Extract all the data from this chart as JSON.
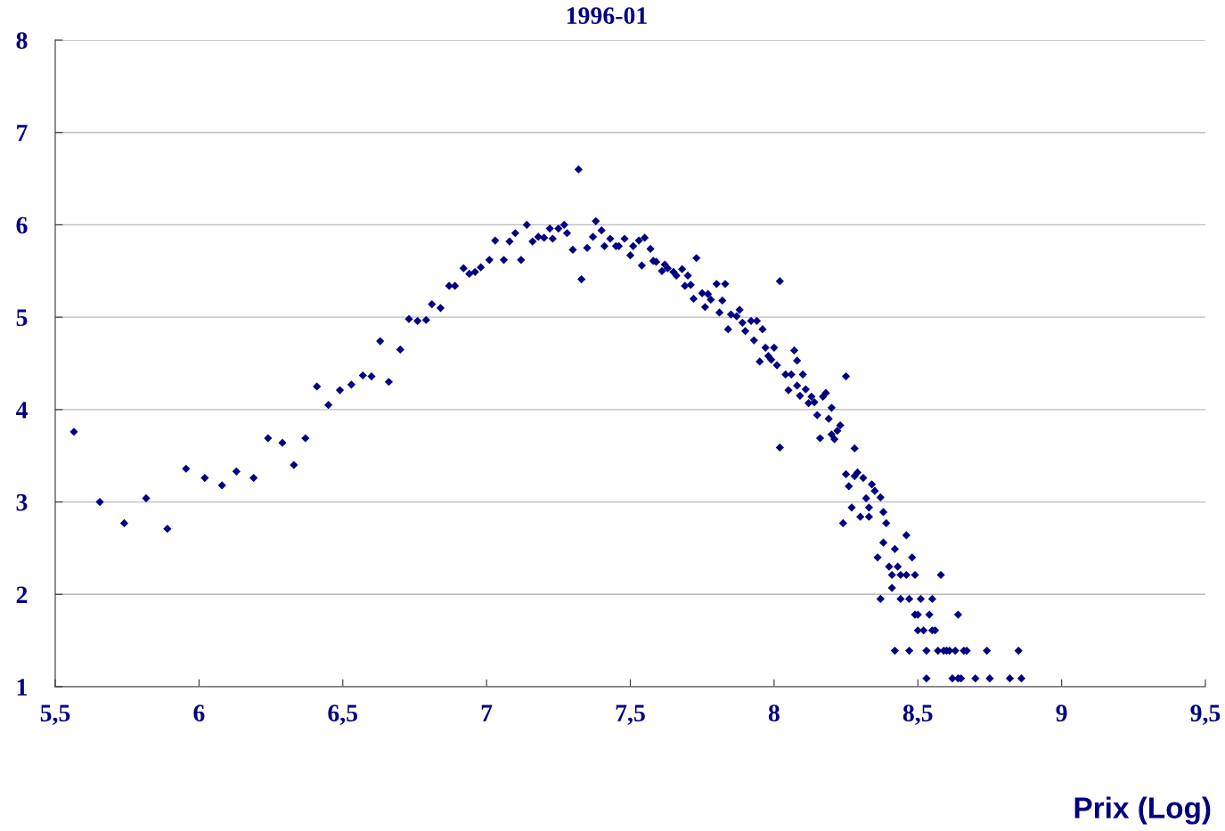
{
  "chart_data": {
    "type": "scatter",
    "title": "1996-01",
    "xlabel": "Prix (Log)",
    "xlim": [
      5.5,
      9.5
    ],
    "xticks": [
      {
        "value": 5.5,
        "label": "5,5"
      },
      6,
      {
        "value": 6.5,
        "label": "6,5"
      },
      7,
      {
        "value": 7.5,
        "label": "7,5"
      },
      8,
      {
        "value": 8.5,
        "label": "8,5"
      },
      9,
      {
        "value": 9.5,
        "label": "9,5"
      }
    ],
    "ylim": [
      1,
      8
    ],
    "yticks": [
      1,
      2,
      3,
      4,
      5,
      6,
      7,
      8
    ],
    "grid": "y",
    "marker": "diamond",
    "series": [
      {
        "color": "#000080",
        "x": [
          5.565,
          5.655,
          5.74,
          5.816,
          5.89,
          5.955,
          6.02,
          6.08,
          6.13,
          6.19,
          6.24,
          6.29,
          6.33,
          6.37,
          6.41,
          6.45,
          6.49,
          6.53,
          6.57,
          6.6,
          6.63,
          6.66,
          6.7,
          6.73,
          6.76,
          6.79,
          6.81,
          6.84,
          6.87,
          6.89,
          6.92,
          6.94,
          6.96,
          6.98,
          7.01,
          7.03,
          7.06,
          7.08,
          7.1,
          7.12,
          7.14,
          7.16,
          7.18,
          7.2,
          7.22,
          7.23,
          7.25,
          7.27,
          7.28,
          7.3,
          7.32,
          7.33,
          7.35,
          7.37,
          7.38,
          7.4,
          7.41,
          7.43,
          7.45,
          7.46,
          7.48,
          7.5,
          7.51,
          7.53,
          7.54,
          7.55,
          7.57,
          7.58,
          7.59,
          7.61,
          7.62,
          7.63,
          7.65,
          7.66,
          7.68,
          7.69,
          7.7,
          7.71,
          7.72,
          7.73,
          7.75,
          7.76,
          7.77,
          7.78,
          7.8,
          7.81,
          7.82,
          7.83,
          7.84,
          7.85,
          7.87,
          7.88,
          7.89,
          7.9,
          7.92,
          7.93,
          7.94,
          7.95,
          7.96,
          7.97,
          7.98,
          7.99,
          8.0,
          8.01,
          8.02,
          8.02,
          8.04,
          8.05,
          8.06,
          8.07,
          8.08,
          8.08,
          8.09,
          8.1,
          8.11,
          8.12,
          8.13,
          8.14,
          8.15,
          8.16,
          8.17,
          8.18,
          8.19,
          8.2,
          8.2,
          8.21,
          8.22,
          8.23,
          8.24,
          8.25,
          8.25,
          8.26,
          8.27,
          8.28,
          8.28,
          8.29,
          8.3,
          8.31,
          8.32,
          8.33,
          8.33,
          8.34,
          8.35,
          8.36,
          8.37,
          8.37,
          8.38,
          8.38,
          8.39,
          8.4,
          8.41,
          8.41,
          8.42,
          8.42,
          8.43,
          8.44,
          8.44,
          8.46,
          8.46,
          8.47,
          8.47,
          8.48,
          8.49,
          8.49,
          8.5,
          8.5,
          8.51,
          8.52,
          8.53,
          8.53,
          8.54,
          8.55,
          8.55,
          8.56,
          8.57,
          8.58,
          8.59,
          8.6,
          8.61,
          8.62,
          8.63,
          8.64,
          8.64,
          8.65,
          8.66,
          8.67,
          8.7,
          8.74,
          8.75,
          8.82,
          8.85,
          8.86
        ],
        "values": [
          3.76,
          3.0,
          2.77,
          3.04,
          2.71,
          3.36,
          3.26,
          3.18,
          3.33,
          3.26,
          3.69,
          3.64,
          3.4,
          3.69,
          4.25,
          4.05,
          4.21,
          4.27,
          4.37,
          4.36,
          4.74,
          4.3,
          4.65,
          4.98,
          4.96,
          4.97,
          5.14,
          5.1,
          5.34,
          5.34,
          5.53,
          5.47,
          5.49,
          5.54,
          5.62,
          5.83,
          5.62,
          5.82,
          5.91,
          5.62,
          6.0,
          5.82,
          5.87,
          5.86,
          5.96,
          5.85,
          5.96,
          6.0,
          5.91,
          5.73,
          6.6,
          5.41,
          5.75,
          5.87,
          6.04,
          5.94,
          5.77,
          5.85,
          5.77,
          5.77,
          5.85,
          5.67,
          5.77,
          5.83,
          5.56,
          5.86,
          5.74,
          5.61,
          5.6,
          5.5,
          5.57,
          5.53,
          5.49,
          5.45,
          5.52,
          5.34,
          5.45,
          5.35,
          5.2,
          5.64,
          5.26,
          5.11,
          5.25,
          5.19,
          5.36,
          5.05,
          5.18,
          5.36,
          4.87,
          5.03,
          5.01,
          5.08,
          4.94,
          4.85,
          4.96,
          4.75,
          4.96,
          4.52,
          4.87,
          4.67,
          4.58,
          4.54,
          4.67,
          4.48,
          5.39,
          3.59,
          4.38,
          4.21,
          4.38,
          4.64,
          4.53,
          4.26,
          4.15,
          4.38,
          4.22,
          4.07,
          4.14,
          4.08,
          3.94,
          3.69,
          4.14,
          4.18,
          3.9,
          3.73,
          4.02,
          3.68,
          3.77,
          3.83,
          2.77,
          4.36,
          3.3,
          3.17,
          2.94,
          3.28,
          3.58,
          3.32,
          2.84,
          3.26,
          3.04,
          2.84,
          2.94,
          3.19,
          3.12,
          2.4,
          3.05,
          1.95,
          2.89,
          2.56,
          2.77,
          2.3,
          2.21,
          2.07,
          1.39,
          2.49,
          2.3,
          2.21,
          1.95,
          2.64,
          2.21,
          1.95,
          1.39,
          2.4,
          1.78,
          2.21,
          1.78,
          1.61,
          1.95,
          1.61,
          1.39,
          1.09,
          1.78,
          1.61,
          1.95,
          1.61,
          1.39,
          2.21,
          1.39,
          1.39,
          1.39,
          1.09,
          1.39,
          1.78,
          1.09,
          1.09,
          1.39,
          1.39,
          1.09,
          1.39,
          1.09,
          1.09,
          1.39,
          1.09
        ]
      }
    ]
  }
}
